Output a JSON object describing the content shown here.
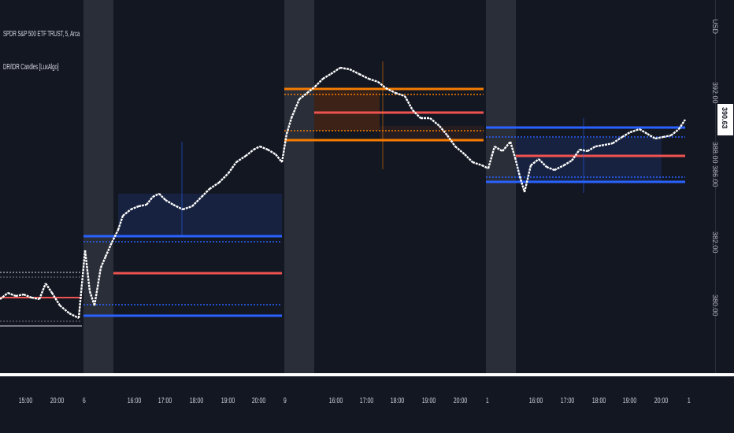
{
  "legend": {
    "symbol_line": "SPDR S&P 500 ETF TRUST, 5, Arca",
    "indicator_line": "DR/IDR Candles [LuxAlgo]"
  },
  "price_axis": {
    "currency": "USD",
    "labels": [
      "392.00",
      "390.00",
      "388.00",
      "386.00",
      "384.00",
      "382.00",
      "380.00"
    ],
    "current_price": "390.63"
  },
  "time_axis": {
    "labels": [
      "15:00",
      "20:00",
      "6",
      "16:00",
      "17:00",
      "18:00",
      "19:00",
      "20:00",
      "9",
      "16:00",
      "17:00",
      "18:00",
      "19:00",
      "20:00",
      "1",
      "16:00",
      "17:00",
      "18:00",
      "19:00",
      "20:00",
      "1"
    ]
  },
  "colors": {
    "background": "#131722",
    "session_shade": "#2a2e39",
    "bull_range": "#2962ff",
    "bear_range": "#f57c00",
    "midline": "#ef5350",
    "neutral_range": "#787b86",
    "candle": "#ffffff"
  },
  "icons": {
    "axis_scale": "price-scale-icon"
  }
}
